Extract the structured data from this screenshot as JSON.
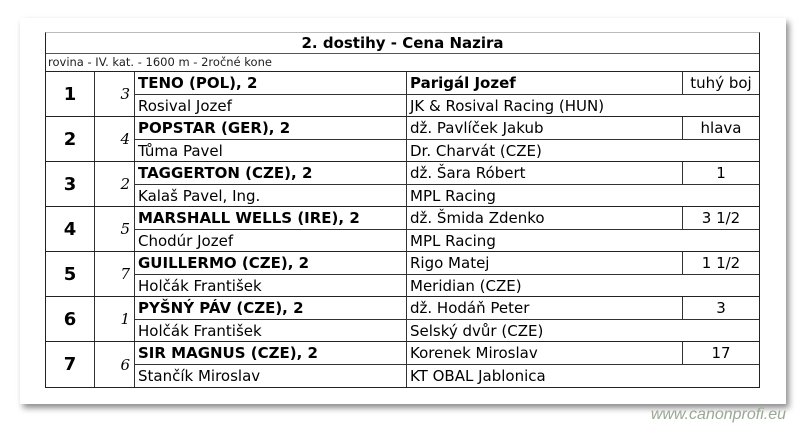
{
  "title": "2. dostihy - Cena Nazira",
  "subtitle": "rovina - IV. kat. - 1600 m - 2ročné kone",
  "rows": [
    {
      "place": "1",
      "number": "3",
      "horse": "TENO (POL), 2",
      "trainer": "Rosival Jozef",
      "jockey": "Parigál Jozef",
      "owner": "JK & Rosival Racing (HUN)",
      "margin": "tuhý boj",
      "jockey_bold": true
    },
    {
      "place": "2",
      "number": "4",
      "horse": "POPSTAR (GER), 2",
      "trainer": "Tůma Pavel",
      "jockey": "dž. Pavlíček Jakub",
      "owner": "Dr. Charvát (CZE)",
      "margin": "hlava"
    },
    {
      "place": "3",
      "number": "2",
      "horse": "TAGGERTON (CZE), 2",
      "trainer": "Kalaš Pavel, Ing.",
      "jockey": "dž. Šara Róbert",
      "owner": "MPL Racing",
      "margin": "1"
    },
    {
      "place": "4",
      "number": "5",
      "horse": "MARSHALL WELLS (IRE), 2",
      "trainer": "Chodúr Jozef",
      "jockey": "dž. Šmida Zdenko",
      "owner": "MPL Racing",
      "margin": "3 1/2"
    },
    {
      "place": "5",
      "number": "7",
      "horse": "GUILLERMO (CZE), 2",
      "trainer": "Holčák František",
      "jockey": "Rigo Matej",
      "owner": "Meridian (CZE)",
      "margin": "1 1/2"
    },
    {
      "place": "6",
      "number": "1",
      "horse": "PYŠNÝ PÁV (CZE), 2",
      "trainer": "Holčák František",
      "jockey": "dž. Hodáň Peter",
      "owner": "Selský dvůr (CZE)",
      "margin": "3"
    },
    {
      "place": "7",
      "number": "6",
      "horse": "SIR MAGNUS (CZE), 2",
      "trainer": "Stančík Miroslav",
      "jockey": "Korenek Miroslav",
      "owner": "KT OBAL Jablonica",
      "margin": "17"
    }
  ],
  "watermark": "www.canonprofi.eu"
}
